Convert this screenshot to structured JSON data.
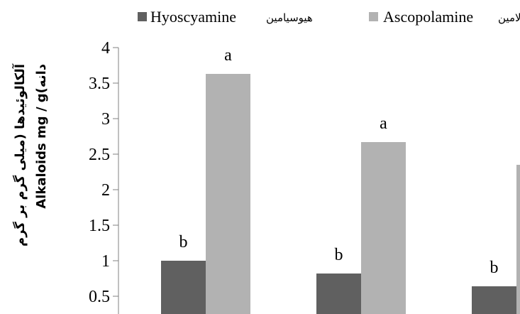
{
  "chart_data": {
    "type": "bar",
    "title": "",
    "ylabel_fa": "آلکالوئیدها (میلی گرم بر گرم",
    "ylabel_en": "Alkaloids mg / g(دانه",
    "ylim": [
      0,
      4
    ],
    "yticks": [
      "0.5",
      "1",
      "1.5",
      "2",
      "2.5",
      "3",
      "3.5",
      "4"
    ],
    "categories": [
      "",
      "",
      ""
    ],
    "series": [
      {
        "name": "Hyoscyamine",
        "name_fa": "هیوسیامین",
        "color": "#606060",
        "values": [
          1.0,
          0.82,
          0.64
        ],
        "labels": [
          "b",
          "b",
          "b"
        ]
      },
      {
        "name": "Ascopolamine",
        "name_fa": "اسکوپولامین",
        "color": "#b2b2b2",
        "values": [
          3.63,
          2.67,
          2.35
        ],
        "labels": [
          "a",
          "a",
          ""
        ]
      }
    ],
    "legend_position": "top",
    "grid": false
  }
}
